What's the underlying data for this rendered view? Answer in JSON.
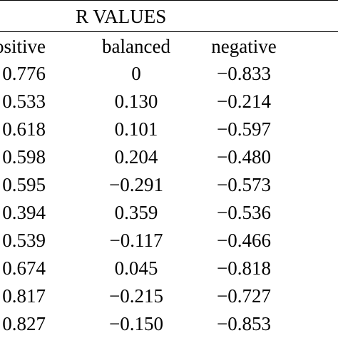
{
  "table": {
    "title": "R VALUES",
    "headers": [
      "ositive",
      "balanced",
      "negative"
    ],
    "rows": [
      [
        "0.776",
        "0",
        "−0.833"
      ],
      [
        "0.533",
        "0.130",
        "−0.214"
      ],
      [
        "0.618",
        "0.101",
        "−0.597"
      ],
      [
        "0.598",
        "0.204",
        "−0.480"
      ],
      [
        "0.595",
        "−0.291",
        "−0.573"
      ],
      [
        "0.394",
        "0.359",
        "−0.536"
      ],
      [
        "0.539",
        "−0.117",
        "−0.466"
      ],
      [
        "0.674",
        "0.045",
        "−0.818"
      ],
      [
        "0.817",
        "−0.215",
        "−0.727"
      ],
      [
        "0.827",
        "−0.150",
        "−0.853"
      ]
    ]
  }
}
